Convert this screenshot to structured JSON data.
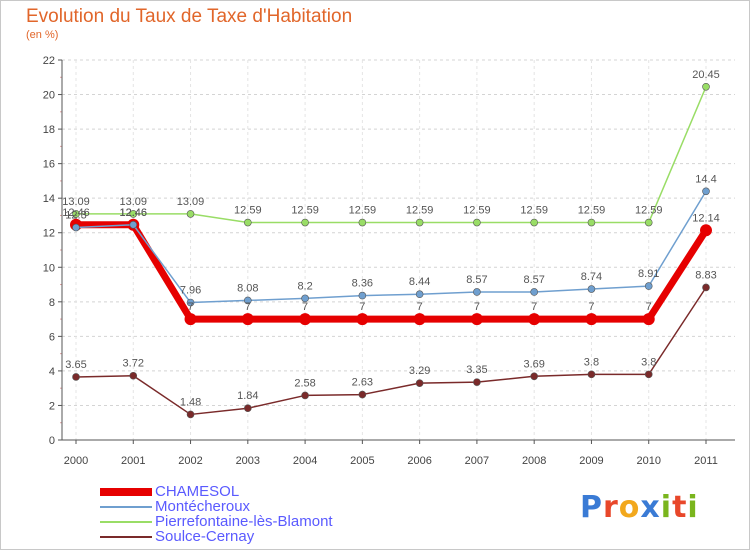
{
  "page": {
    "title": "Evolution du Taux de Taxe d'Habitation",
    "subtitle": "(en %)",
    "brand": "Proxiti",
    "brand_letter_colors": [
      "#3a7bd5",
      "#e8472a",
      "#f2a81d",
      "#3a7bd5",
      "#7ab51d",
      "#e8472a",
      "#7ab51d"
    ]
  },
  "chart_data": {
    "type": "line",
    "title": "Evolution du Taux de Taxe d'Habitation",
    "subtitle": "(en %)",
    "xlabel": "",
    "ylabel": "",
    "x": [
      "2000",
      "2001",
      "2002",
      "2003",
      "2004",
      "2005",
      "2006",
      "2007",
      "2008",
      "2009",
      "2010",
      "2011"
    ],
    "ylim": [
      0,
      22
    ],
    "yticks": [
      "0",
      "2",
      "4",
      "6",
      "8",
      "10",
      "12",
      "14",
      "16",
      "18",
      "20",
      "22"
    ],
    "grid": "horizontal dashed",
    "legend": "bottom-left",
    "series": [
      {
        "name": "CHAMESOL",
        "color": "#e60000",
        "values": [
          12.46,
          12.46,
          7,
          7,
          7,
          7,
          7,
          7,
          7,
          7,
          7,
          12.14
        ],
        "labels": [
          "12.46",
          "12.46",
          "7",
          "7",
          "7",
          "7",
          "7",
          "7",
          "7",
          "7",
          "7",
          "12.14"
        ]
      },
      {
        "name": "Montécheroux",
        "color": "#6f9fcf",
        "values": [
          12.3,
          12.46,
          7.96,
          8.08,
          8.2,
          8.36,
          8.44,
          8.57,
          8.57,
          8.74,
          8.91,
          14.4
        ],
        "labels": [
          "12.3",
          "12.46",
          "7.96",
          "8.08",
          "8.2",
          "8.36",
          "8.44",
          "8.57",
          "8.57",
          "8.74",
          "8.91",
          "14.4"
        ]
      },
      {
        "name": "Pierrefontaine-lès-Blamont",
        "color": "#99dd66",
        "values": [
          13.09,
          13.09,
          13.09,
          12.59,
          12.59,
          12.59,
          12.59,
          12.59,
          12.59,
          12.59,
          12.59,
          20.45
        ],
        "labels": [
          "13.09",
          "13.09",
          "13.09",
          "12.59",
          "12.59",
          "12.59",
          "12.59",
          "12.59",
          "12.59",
          "12.59",
          "12.59",
          "20.45"
        ]
      },
      {
        "name": "Soulce-Cernay",
        "color": "#7a2a2a",
        "values": [
          3.65,
          3.72,
          1.48,
          1.84,
          2.58,
          2.63,
          3.29,
          3.35,
          3.69,
          3.8,
          3.8,
          8.83
        ],
        "labels": [
          "3.65",
          "3.72",
          "1.48",
          "1.84",
          "2.58",
          "2.63",
          "3.29",
          "3.35",
          "3.69",
          "3.8",
          "3.8",
          "8.83"
        ]
      }
    ]
  }
}
